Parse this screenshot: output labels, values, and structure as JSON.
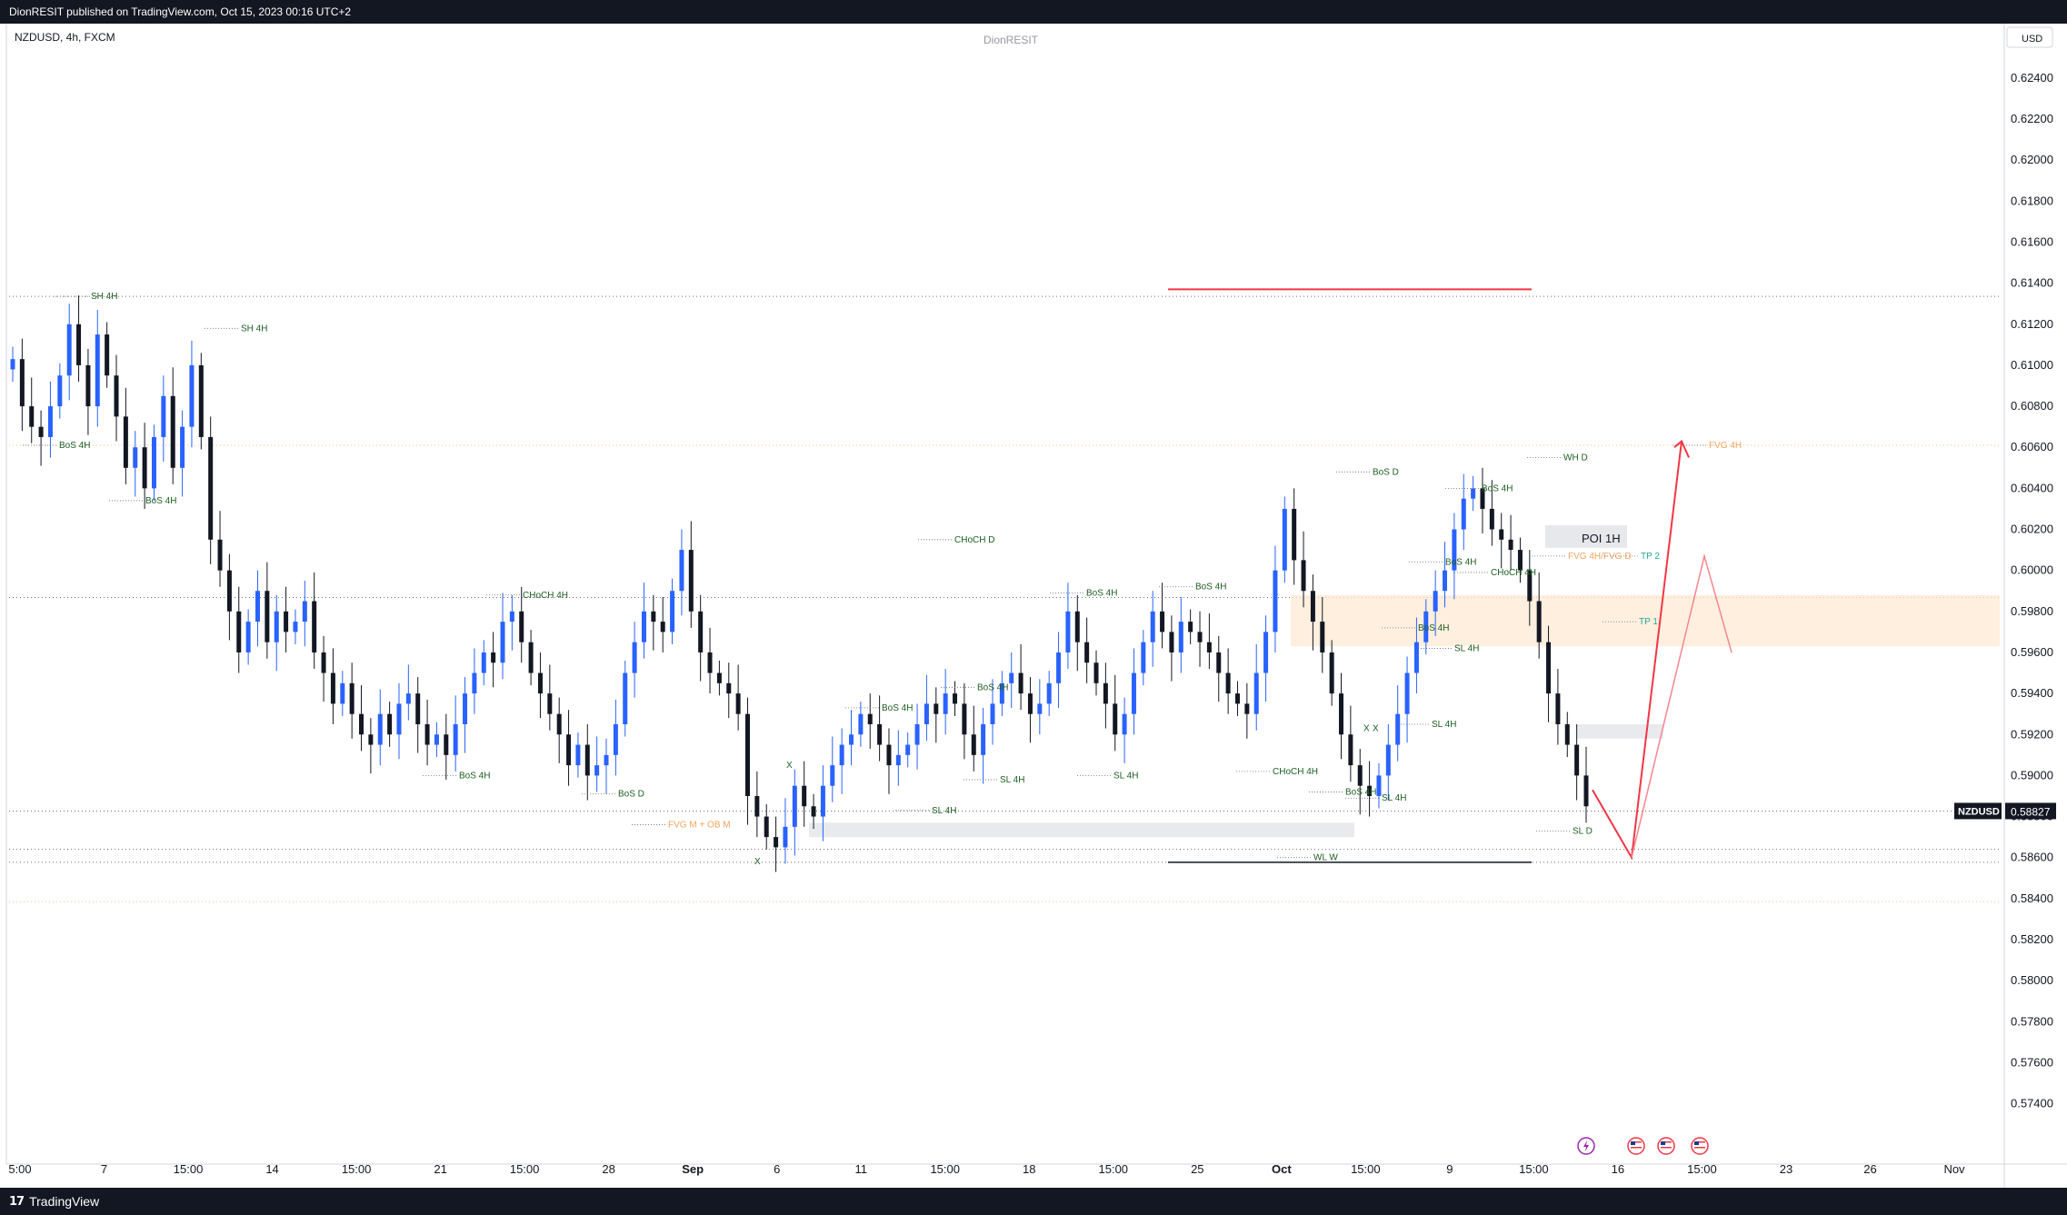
{
  "header": {
    "publish_text": "DionRESIT published on TradingView.com, Oct 15, 2023 00:16 UTC+2"
  },
  "footer": {
    "brand": "TradingView",
    "logo_icon": "tradingview-logo-icon"
  },
  "chart_data": {
    "type": "candlestick",
    "symbol_info": "NZDUSD, 4h, FXCM",
    "watermark": "DionRESIT",
    "currency": "USD",
    "symbol_tag": "NZDUSD",
    "last_price": 0.58827,
    "last_price_label": "0.58827",
    "ylim": [
      0.5715,
      0.6263
    ],
    "y_ticks": [
      "0.62400",
      "0.62200",
      "0.62000",
      "0.61800",
      "0.61600",
      "0.61400",
      "0.61200",
      "0.61000",
      "0.60800",
      "0.60600",
      "0.60400",
      "0.60200",
      "0.60000",
      "0.59800",
      "0.59600",
      "0.59400",
      "0.59200",
      "0.59000",
      "0.58800",
      "0.58600",
      "0.58400",
      "0.58200",
      "0.58000",
      "0.57800",
      "0.57600",
      "0.57400"
    ],
    "x_ticks": [
      "5:00",
      "7",
      "15:00",
      "14",
      "15:00",
      "21",
      "15:00",
      "28",
      "Sep",
      "6",
      "11",
      "15:00",
      "18",
      "15:00",
      "25",
      "Oct",
      "15:00",
      "9",
      "15:00",
      "16",
      "15:00",
      "23",
      "26",
      "Nov"
    ],
    "x_ticks_bold": [
      "Sep",
      "Oct"
    ],
    "colors": {
      "up": "#2962ff",
      "down": "#131722",
      "accent": "#f23645",
      "annotation": "#1b5e20",
      "fvg": "#f7a35c",
      "zone": "#fde9d3"
    },
    "candles_close": [
      0.6103,
      0.608,
      0.607,
      0.6065,
      0.608,
      0.6095,
      0.612,
      0.61,
      0.608,
      0.6115,
      0.6095,
      0.6075,
      0.605,
      0.606,
      0.604,
      0.6065,
      0.6085,
      0.605,
      0.607,
      0.61,
      0.6065,
      0.6015,
      0.6,
      0.598,
      0.596,
      0.5975,
      0.599,
      0.5965,
      0.598,
      0.597,
      0.5975,
      0.5985,
      0.596,
      0.595,
      0.5935,
      0.5945,
      0.593,
      0.592,
      0.5915,
      0.593,
      0.592,
      0.5935,
      0.594,
      0.5925,
      0.5915,
      0.592,
      0.591,
      0.5925,
      0.594,
      0.595,
      0.596,
      0.5955,
      0.5975,
      0.598,
      0.5965,
      0.595,
      0.594,
      0.593,
      0.592,
      0.5905,
      0.5915,
      0.59,
      0.5905,
      0.591,
      0.5925,
      0.595,
      0.5965,
      0.598,
      0.5975,
      0.597,
      0.599,
      0.601,
      0.598,
      0.596,
      0.595,
      0.5945,
      0.594,
      0.593,
      0.589,
      0.588,
      0.587,
      0.5865,
      0.5875,
      0.5895,
      0.5885,
      0.588,
      0.5895,
      0.5905,
      0.5915,
      0.592,
      0.593,
      0.5925,
      0.5915,
      0.5905,
      0.591,
      0.5915,
      0.5925,
      0.5935,
      0.593,
      0.594,
      0.5935,
      0.592,
      0.591,
      0.5925,
      0.5935,
      0.5945,
      0.595,
      0.594,
      0.593,
      0.5935,
      0.5945,
      0.596,
      0.598,
      0.5965,
      0.5955,
      0.5945,
      0.5935,
      0.592,
      0.593,
      0.595,
      0.5965,
      0.598,
      0.597,
      0.596,
      0.5975,
      0.597,
      0.5965,
      0.596,
      0.595,
      0.594,
      0.5935,
      0.593,
      0.595,
      0.597,
      0.6,
      0.603,
      0.6005,
      0.599,
      0.5975,
      0.596,
      0.594,
      0.592,
      0.5905,
      0.5895,
      0.589,
      0.59,
      0.5915,
      0.593,
      0.595,
      0.5965,
      0.598,
      0.599,
      0.6,
      0.602,
      0.6035,
      0.604,
      0.603,
      0.602,
      0.6015,
      0.601,
      0.6,
      0.5985,
      0.5965,
      0.594,
      0.5925,
      0.5915,
      0.59,
      0.5885
    ],
    "horizontal_levels": [
      0.61336,
      0.6061,
      0.59868,
      0.58827,
      0.5864,
      0.58577,
      0.58385
    ],
    "zone_fvg": [
      0.5963,
      0.5988
    ],
    "red_level": 0.6137,
    "projection_points": [
      [
        0.5885,
        0.588
      ],
      [
        0.586,
        0.6063
      ],
      [
        0.6007,
        0.596
      ]
    ],
    "annotations": [
      {
        "text": "SH 4H",
        "price": 0.61336
      },
      {
        "text": "SH 4H",
        "price": 0.6118
      },
      {
        "text": "BoS 4H",
        "price": 0.6061
      },
      {
        "text": "BoS 4H",
        "price": 0.6034
      },
      {
        "text": "CHoCH 4H",
        "price": 0.5988
      },
      {
        "text": "CHoCH D",
        "price": 0.6015
      },
      {
        "text": "BoS 4H",
        "price": 0.59
      },
      {
        "text": "BoS D",
        "price": 0.5891
      },
      {
        "text": "FVG M + OB M",
        "price": 0.5876
      },
      {
        "text": "X",
        "price": 0.5905
      },
      {
        "text": "X",
        "price": 0.5858
      },
      {
        "text": "BoS 4H",
        "price": 0.5933
      },
      {
        "text": "BoS 4H",
        "price": 0.5943
      },
      {
        "text": "SL 4H",
        "price": 0.5898
      },
      {
        "text": "SL 4H",
        "price": 0.5883
      },
      {
        "text": "SL 4H",
        "price": 0.59
      },
      {
        "text": "BoS 4H",
        "price": 0.5989
      },
      {
        "text": "BoS 4H",
        "price": 0.5992
      },
      {
        "text": "BoS D",
        "price": 0.6048
      },
      {
        "text": "CHoCH 4H",
        "price": 0.5902
      },
      {
        "text": "BoS 4H",
        "price": 0.5892
      },
      {
        "text": "SL 4H",
        "price": 0.5889
      },
      {
        "text": "BoS 4H",
        "price": 0.5972
      },
      {
        "text": "SL 4H",
        "price": 0.5962
      },
      {
        "text": "SL 4H",
        "price": 0.5925
      },
      {
        "text": "X",
        "price": 0.5923
      },
      {
        "text": "X",
        "price": 0.5923
      },
      {
        "text": "BoS 4H",
        "price": 0.604
      },
      {
        "text": "BoS 4H",
        "price": 0.6004
      },
      {
        "text": "CHoCH 4H",
        "price": 0.5999
      },
      {
        "text": "WH D",
        "price": 0.6055
      },
      {
        "text": "POI 1H",
        "price": 0.6015
      },
      {
        "text": "FVG 4H/FVG D",
        "price": 0.6007
      },
      {
        "text": "TP 2",
        "price": 0.6007
      },
      {
        "text": "TP 1",
        "price": 0.5975
      },
      {
        "text": "FVG 4H",
        "price": 0.6061
      },
      {
        "text": "SL D",
        "price": 0.5873
      },
      {
        "text": "WL W",
        "price": 0.586
      }
    ],
    "event_icons": [
      "flash-icon",
      "us-flag-icon",
      "us-flag-icon",
      "us-flag-icon"
    ],
    "grid": false
  }
}
